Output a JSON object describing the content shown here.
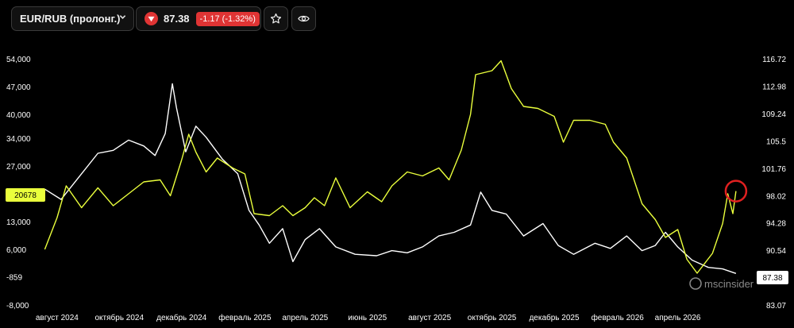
{
  "header": {
    "symbol": "EUR/RUB (пролонг.)",
    "price": "87.38",
    "change": "-1.17 (-1.32%)"
  },
  "colors": {
    "primary_series": "#ffffff",
    "secondary_series": "#eaff3c",
    "negative": "#e03434",
    "marker": "#e02020",
    "background": "#000000"
  },
  "icons": {
    "dropdown": "chevron-down-icon",
    "trend": "triangle-down-icon",
    "favorite": "star-icon",
    "watch": "eye-icon"
  },
  "watermark": "mscinsider",
  "chart_data": {
    "type": "line",
    "x_ticks": [
      "август 2024",
      "октябрь 2024",
      "декабрь 2024",
      "февраль 2025",
      "апрель 2025",
      "июнь 2025",
      "август 2025",
      "октябрь 2025",
      "декабрь 2025",
      "февраль 2026",
      "апрель 2026"
    ],
    "x_range": [
      "2024-07-15",
      "2026-06-15"
    ],
    "y_left": {
      "ticks": [
        "54,000",
        "47,000",
        "40,000",
        "34,000",
        "27,000",
        "20,000",
        "13,000",
        "6,000",
        "-859",
        "-8,000"
      ],
      "range": [
        -8000,
        54000
      ],
      "last_value_tag": "20678"
    },
    "y_right": {
      "ticks": [
        "116.72",
        "112.98",
        "109.24",
        "105.5",
        "101.76",
        "98.02",
        "94.28",
        "90.54",
        "87.38",
        "83.07"
      ],
      "range": [
        83.07,
        116.72
      ],
      "last_value_tag": "87.38"
    },
    "grid": false,
    "series": [
      {
        "axis": "right",
        "color": "#ffffff",
        "points": [
          [
            "2024-07-20",
            98.9
          ],
          [
            "2024-08-05",
            97.5
          ],
          [
            "2024-08-25",
            101.0
          ],
          [
            "2024-09-10",
            103.8
          ],
          [
            "2024-09-25",
            104.2
          ],
          [
            "2024-10-10",
            105.6
          ],
          [
            "2024-10-25",
            104.8
          ],
          [
            "2024-11-05",
            103.5
          ],
          [
            "2024-11-15",
            106.5
          ],
          [
            "2024-11-22",
            113.3
          ],
          [
            "2024-11-26",
            110.0
          ],
          [
            "2024-12-05",
            104.0
          ],
          [
            "2024-12-15",
            107.5
          ],
          [
            "2024-12-25",
            106.0
          ],
          [
            "2025-01-10",
            103.0
          ],
          [
            "2025-01-25",
            101.0
          ],
          [
            "2025-02-05",
            96.0
          ],
          [
            "2025-02-15",
            94.0
          ],
          [
            "2025-02-25",
            91.5
          ],
          [
            "2025-03-10",
            93.5
          ],
          [
            "2025-03-20",
            89.0
          ],
          [
            "2025-04-01",
            92.0
          ],
          [
            "2025-04-15",
            93.5
          ],
          [
            "2025-05-01",
            91.0
          ],
          [
            "2025-05-20",
            90.0
          ],
          [
            "2025-06-10",
            89.8
          ],
          [
            "2025-06-25",
            90.5
          ],
          [
            "2025-07-10",
            90.2
          ],
          [
            "2025-07-25",
            91.0
          ],
          [
            "2025-08-10",
            92.5
          ],
          [
            "2025-08-25",
            93.0
          ],
          [
            "2025-09-10",
            94.0
          ],
          [
            "2025-09-20",
            98.5
          ],
          [
            "2025-10-01",
            96.0
          ],
          [
            "2025-10-15",
            95.5
          ],
          [
            "2025-11-01",
            92.5
          ],
          [
            "2025-11-20",
            94.2
          ],
          [
            "2025-12-05",
            91.2
          ],
          [
            "2025-12-20",
            90.0
          ],
          [
            "2026-01-10",
            91.5
          ],
          [
            "2026-01-25",
            90.8
          ],
          [
            "2026-02-10",
            92.5
          ],
          [
            "2026-02-25",
            90.5
          ],
          [
            "2026-03-10",
            91.2
          ],
          [
            "2026-03-20",
            93.0
          ],
          [
            "2026-04-01",
            91.0
          ],
          [
            "2026-04-15",
            89.2
          ],
          [
            "2026-05-01",
            88.2
          ],
          [
            "2026-05-15",
            88.0
          ],
          [
            "2026-05-28",
            87.38
          ]
        ]
      },
      {
        "axis": "left",
        "color": "#eaff3c",
        "points": [
          [
            "2024-07-20",
            6000
          ],
          [
            "2024-08-01",
            14000
          ],
          [
            "2024-08-10",
            22000
          ],
          [
            "2024-08-25",
            16500
          ],
          [
            "2024-09-10",
            21500
          ],
          [
            "2024-09-25",
            17000
          ],
          [
            "2024-10-10",
            20000
          ],
          [
            "2024-10-25",
            23000
          ],
          [
            "2024-11-10",
            23500
          ],
          [
            "2024-11-20",
            19500
          ],
          [
            "2024-12-01",
            28500
          ],
          [
            "2024-12-08",
            35000
          ],
          [
            "2024-12-15",
            30500
          ],
          [
            "2024-12-25",
            25500
          ],
          [
            "2025-01-05",
            29000
          ],
          [
            "2025-01-20",
            26500
          ],
          [
            "2025-02-01",
            25000
          ],
          [
            "2025-02-10",
            15000
          ],
          [
            "2025-02-25",
            14500
          ],
          [
            "2025-03-10",
            17000
          ],
          [
            "2025-03-20",
            14500
          ],
          [
            "2025-04-01",
            16500
          ],
          [
            "2025-04-10",
            19000
          ],
          [
            "2025-04-20",
            17000
          ],
          [
            "2025-05-01",
            24000
          ],
          [
            "2025-05-15",
            16500
          ],
          [
            "2025-06-01",
            20500
          ],
          [
            "2025-06-15",
            18000
          ],
          [
            "2025-06-25",
            22000
          ],
          [
            "2025-07-10",
            25500
          ],
          [
            "2025-07-25",
            24500
          ],
          [
            "2025-08-10",
            26500
          ],
          [
            "2025-08-20",
            23500
          ],
          [
            "2025-09-01",
            31000
          ],
          [
            "2025-09-10",
            40000
          ],
          [
            "2025-09-15",
            50000
          ],
          [
            "2025-10-01",
            51000
          ],
          [
            "2025-10-10",
            53500
          ],
          [
            "2025-10-20",
            46500
          ],
          [
            "2025-11-01",
            42000
          ],
          [
            "2025-11-15",
            41500
          ],
          [
            "2025-12-01",
            39500
          ],
          [
            "2025-12-10",
            33000
          ],
          [
            "2025-12-20",
            38500
          ],
          [
            "2026-01-05",
            38500
          ],
          [
            "2026-01-20",
            37500
          ],
          [
            "2026-01-28",
            33000
          ],
          [
            "2026-02-10",
            29000
          ],
          [
            "2026-02-25",
            17500
          ],
          [
            "2026-03-10",
            13500
          ],
          [
            "2026-03-20",
            9000
          ],
          [
            "2026-04-01",
            11000
          ],
          [
            "2026-04-10",
            3500
          ],
          [
            "2026-04-20",
            0
          ],
          [
            "2026-05-05",
            5000
          ],
          [
            "2026-05-15",
            12500
          ],
          [
            "2026-05-20",
            20000
          ],
          [
            "2026-05-25",
            15000
          ],
          [
            "2026-05-28",
            20678
          ]
        ]
      }
    ]
  }
}
